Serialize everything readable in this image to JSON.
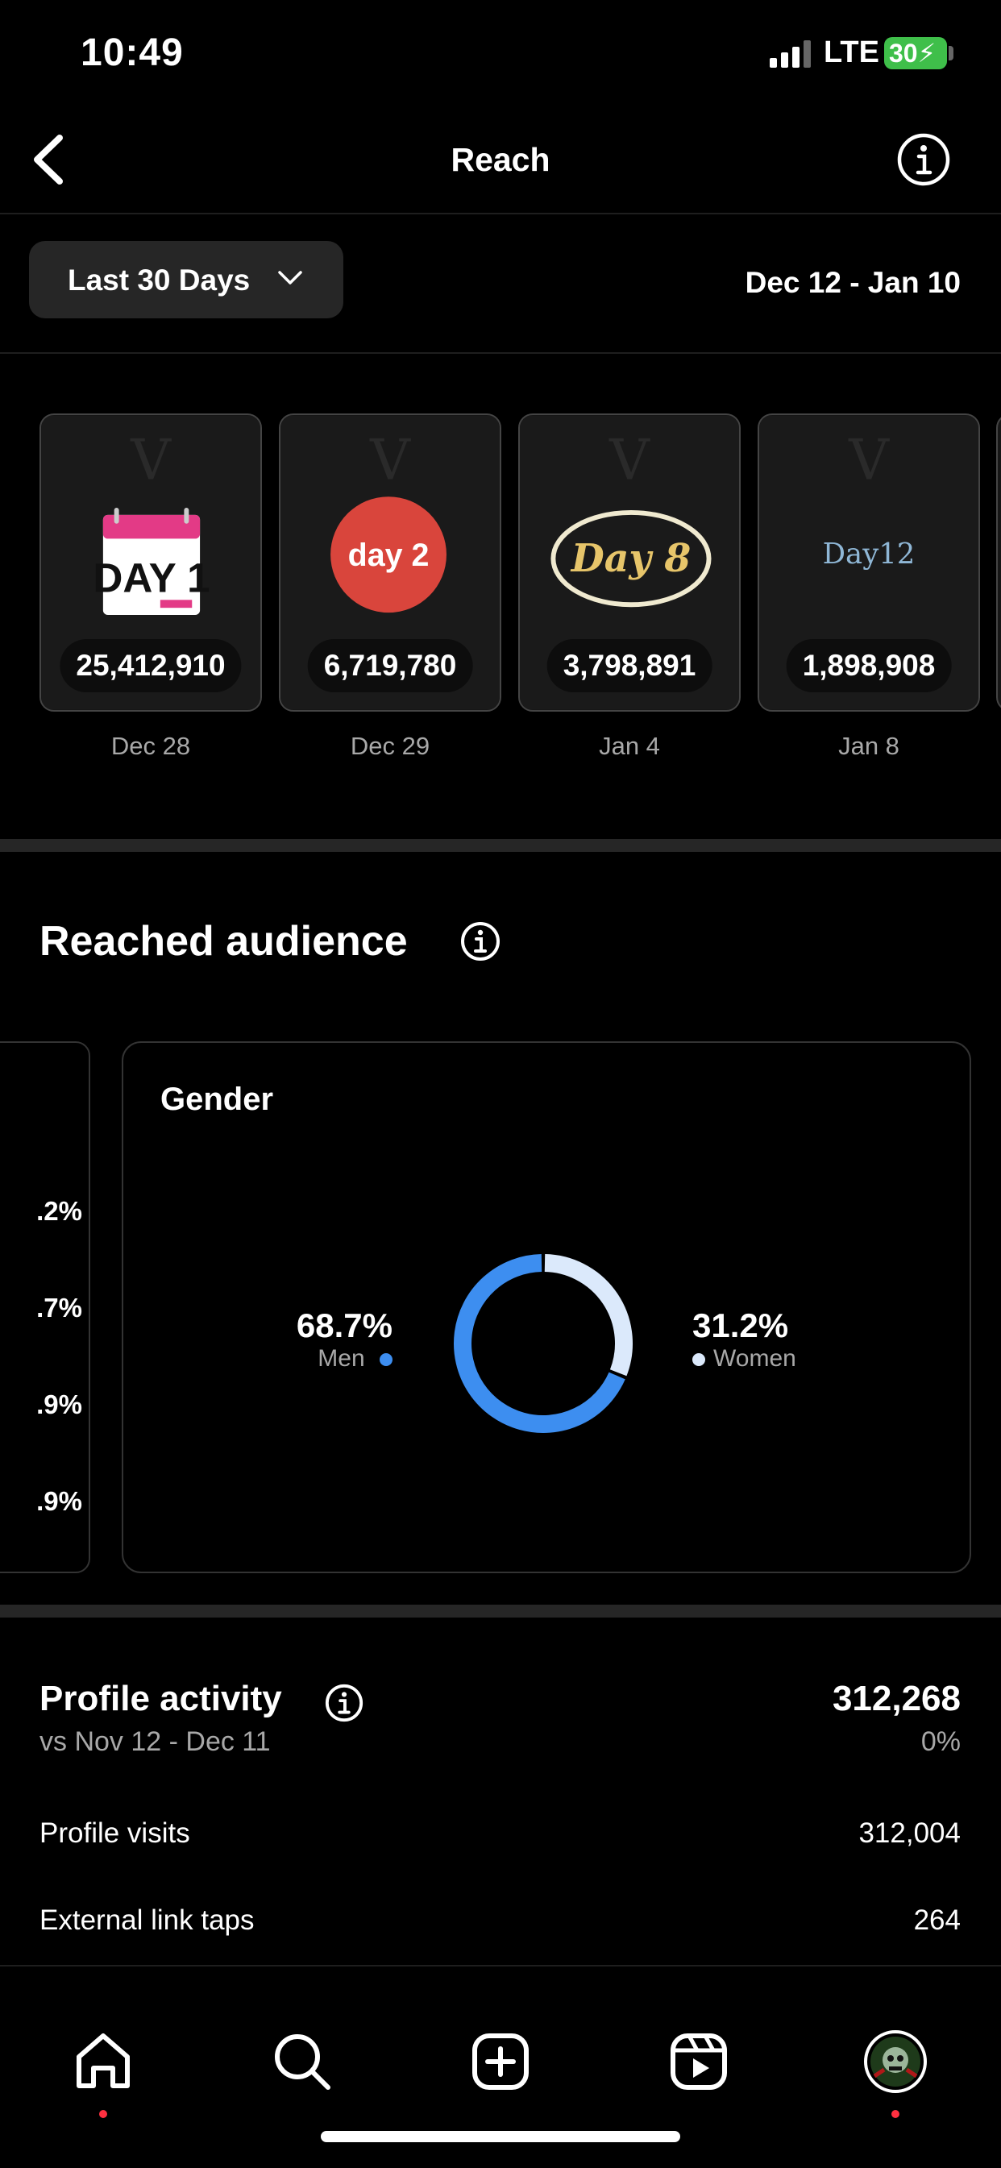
{
  "status_bar": {
    "time": "10:49",
    "network": "LTE",
    "battery": "30"
  },
  "header": {
    "title": "Reach",
    "back_icon": "back-chevron-icon",
    "info_icon": "info-icon"
  },
  "date_range": {
    "label": "Last 30 Days",
    "dates": "Dec 12 - Jan 10"
  },
  "stories": [
    {
      "reach": "25,412,910",
      "date": "Dec 28",
      "badge": "DAY 1"
    },
    {
      "reach": "6,719,780",
      "date": "Dec 29",
      "badge": "day 2"
    },
    {
      "reach": "3,798,891",
      "date": "Jan 4",
      "badge": "Day 8"
    },
    {
      "reach": "1,898,908",
      "date": "Jan 8",
      "badge": "Day12"
    }
  ],
  "reached_audience": {
    "title": "Reached audience",
    "left_panel_values": [
      ".2%",
      ".7%",
      ".9%",
      ".9%"
    ],
    "gender": {
      "title": "Gender",
      "men": {
        "percent": "68.7%",
        "label": "Men",
        "value": 68.7,
        "color": "#3d8ef0"
      },
      "women": {
        "percent": "31.2%",
        "label": "Women",
        "value": 31.2,
        "color": "#dbe9fb"
      }
    }
  },
  "profile_activity": {
    "title": "Profile activity",
    "comparison": "vs Nov 12 - Dec 11",
    "total": "312,268",
    "change": "0%",
    "rows": [
      {
        "label": "Profile visits",
        "value": "312,004"
      },
      {
        "label": "External link taps",
        "value": "264"
      }
    ]
  },
  "nav": {
    "items": [
      "home-icon",
      "search-icon",
      "create-icon",
      "reels-icon",
      "profile-avatar"
    ]
  },
  "colors": {
    "accent_blue": "#3d8ef0",
    "notification_red": "#ff3040",
    "battery_green": "#3fbf4a"
  }
}
